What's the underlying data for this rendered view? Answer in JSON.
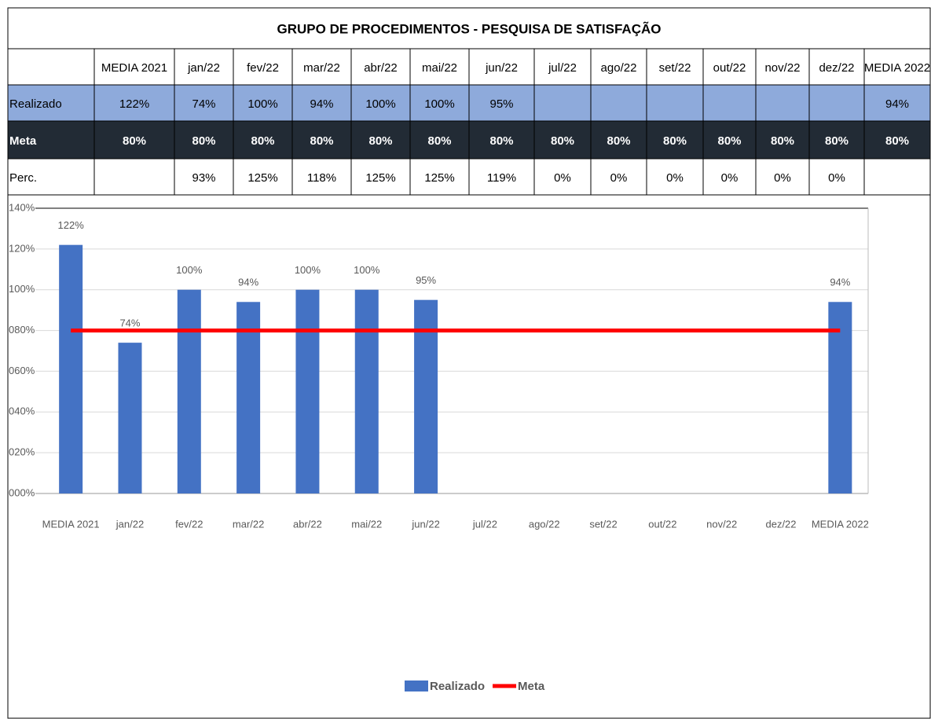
{
  "table": {
    "title": "GRUPO DE PROCEDIMENTOS -  PESQUISA DE SATISFAÇÃO",
    "header": [
      "MEDIA 2021",
      "jan/22",
      "fev/22",
      "mar/22",
      "abr/22",
      "mai/22",
      "jun/22",
      "jul/22",
      "ago/22",
      "set/22",
      "out/22",
      "nov/22",
      "dez/22",
      "MEDIA 2022"
    ],
    "rows": [
      {
        "label": "Realizado",
        "cells": [
          "122%",
          "74%",
          "100%",
          "94%",
          "100%",
          "100%",
          "95%",
          null,
          null,
          null,
          null,
          null,
          null,
          "94%"
        ]
      },
      {
        "label": "Meta",
        "cells": [
          "80%",
          "80%",
          "80%",
          "80%",
          "80%",
          "80%",
          "80%",
          "80%",
          "80%",
          "80%",
          "80%",
          "80%",
          "80%",
          "80%"
        ]
      },
      {
        "label": "Perc.",
        "cells": [
          null,
          "93%",
          "125%",
          "118%",
          "125%",
          "125%",
          "119%",
          "0%",
          "0%",
          "0%",
          "0%",
          "0%",
          "0%",
          null
        ]
      }
    ]
  },
  "chart_data": {
    "type": "bar",
    "categories": [
      "MEDIA 2021",
      "jan/22",
      "fev/22",
      "mar/22",
      "abr/22",
      "mai/22",
      "jun/22",
      "jul/22",
      "ago/22",
      "set/22",
      "out/22",
      "nov/22",
      "dez/22",
      "MEDIA 2022"
    ],
    "series": [
      {
        "name": "Realizado",
        "type": "bar",
        "color": "#4472c4",
        "values": [
          122,
          74,
          100,
          94,
          100,
          100,
          95,
          null,
          null,
          null,
          null,
          null,
          null,
          94
        ],
        "value_labels": [
          "122%",
          "74%",
          "100%",
          "94%",
          "100%",
          "100%",
          "95%",
          null,
          null,
          null,
          null,
          null,
          null,
          "94%"
        ]
      },
      {
        "name": "Meta",
        "type": "line",
        "color": "#ff0000",
        "values": [
          80,
          80,
          80,
          80,
          80,
          80,
          80,
          80,
          80,
          80,
          80,
          80,
          80,
          80
        ]
      }
    ],
    "ylim": [
      0,
      140
    ],
    "yticks": [
      {
        "value": 0,
        "label": "000%"
      },
      {
        "value": 20,
        "label": "020%"
      },
      {
        "value": 40,
        "label": "040%"
      },
      {
        "value": 60,
        "label": "060%"
      },
      {
        "value": 80,
        "label": "080%"
      },
      {
        "value": 100,
        "label": "100%"
      },
      {
        "value": 120,
        "label": "120%"
      },
      {
        "value": 140,
        "label": "140%"
      }
    ],
    "grid": true,
    "legend": "bottom"
  }
}
